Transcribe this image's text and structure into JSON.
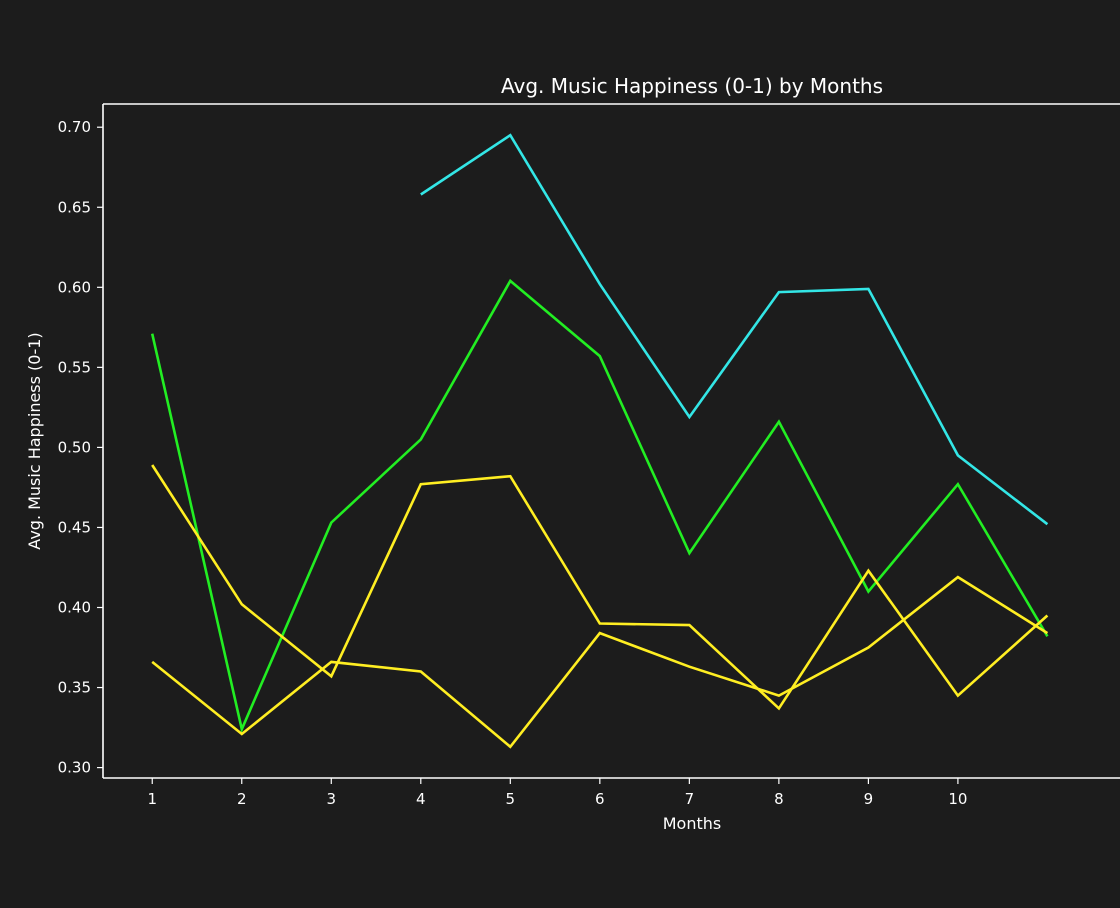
{
  "chart_data": {
    "type": "line",
    "title": "Avg. Music Happiness (0-1) by Months",
    "xlabel": "Months",
    "ylabel": "Avg. Music Happiness (0-1)",
    "x_ticks": [
      "1",
      "2",
      "3",
      "4",
      "5",
      "6",
      "7",
      "8",
      "9",
      "10"
    ],
    "y_ticks": [
      "0.30",
      "0.35",
      "0.40",
      "0.45",
      "0.50",
      "0.55",
      "0.60",
      "0.65",
      "0.70"
    ],
    "xlim": [
      0.45,
      11.9
    ],
    "ylim": [
      0.2935,
      0.7145
    ],
    "grid": false,
    "background": "#1c1c1c",
    "series": [
      {
        "color": "#33e6e6",
        "x": [
          4,
          5,
          6,
          7,
          8,
          9,
          10,
          11
        ],
        "y": [
          0.658,
          0.695,
          0.602,
          0.519,
          0.597,
          0.599,
          0.495,
          0.452
        ]
      },
      {
        "color": "#22ee22",
        "x": [
          1,
          2,
          3,
          4,
          5,
          6,
          7,
          8,
          9,
          10,
          11
        ],
        "y": [
          0.571,
          0.324,
          0.453,
          0.505,
          0.604,
          0.557,
          0.434,
          0.516,
          0.41,
          0.477,
          0.382
        ]
      },
      {
        "color": "#ffee22",
        "x": [
          1,
          2,
          3,
          4,
          5,
          6,
          7,
          8,
          9,
          10,
          11
        ],
        "y": [
          0.489,
          0.402,
          0.357,
          0.477,
          0.482,
          0.39,
          0.389,
          0.337,
          0.423,
          0.345,
          0.395
        ]
      },
      {
        "color": "#ffee22",
        "x": [
          1,
          2,
          3,
          4,
          5,
          6,
          7,
          8,
          9,
          10,
          11
        ],
        "y": [
          0.366,
          0.321,
          0.366,
          0.36,
          0.313,
          0.384,
          0.363,
          0.345,
          0.375,
          0.419,
          0.384
        ]
      }
    ]
  }
}
